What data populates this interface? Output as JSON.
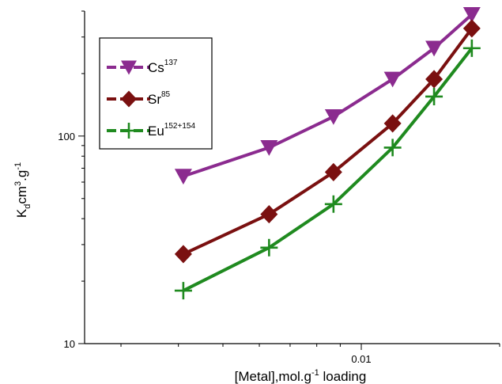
{
  "chart_data": {
    "type": "line",
    "xlabel": "[Metal],mol.g",
    "xlabel_sup": "-1",
    "xlabel_suffix": " loading",
    "ylabel_parts": [
      "K",
      "d",
      "cm",
      "3",
      ".g",
      "-1"
    ],
    "x_scale": "log",
    "y_scale": "log",
    "xlim": [
      0.0025,
      0.02
    ],
    "ylim": [
      10,
      400
    ],
    "x_tick_labels": [
      {
        "value": 0.01,
        "label": "0.01"
      }
    ],
    "y_tick_labels": [
      {
        "value": 10,
        "label": "10"
      },
      {
        "value": 100,
        "label": "100"
      }
    ],
    "grid": false,
    "legend_position": "top-left",
    "series": [
      {
        "name": "Cs",
        "name_sup": "137",
        "color": "#8B2B8F",
        "marker": "triangle-down",
        "x": [
          0.0041,
          0.0063,
          0.0087,
          0.0117,
          0.0144,
          0.0174
        ],
        "y": [
          64,
          88,
          124,
          188,
          265,
          385
        ]
      },
      {
        "name": "Sr",
        "name_sup": "85",
        "color": "#7A1010",
        "marker": "diamond",
        "x": [
          0.0041,
          0.0063,
          0.0087,
          0.0117,
          0.0144,
          0.0174
        ],
        "y": [
          27,
          42,
          67,
          115,
          188,
          330
        ]
      },
      {
        "name": "Eu",
        "name_sup": "152+154",
        "color": "#1F8A1F",
        "marker": "plus",
        "x": [
          0.0041,
          0.0063,
          0.0087,
          0.0117,
          0.0144,
          0.0174
        ],
        "y": [
          18,
          29,
          47,
          88,
          155,
          265
        ]
      }
    ]
  }
}
